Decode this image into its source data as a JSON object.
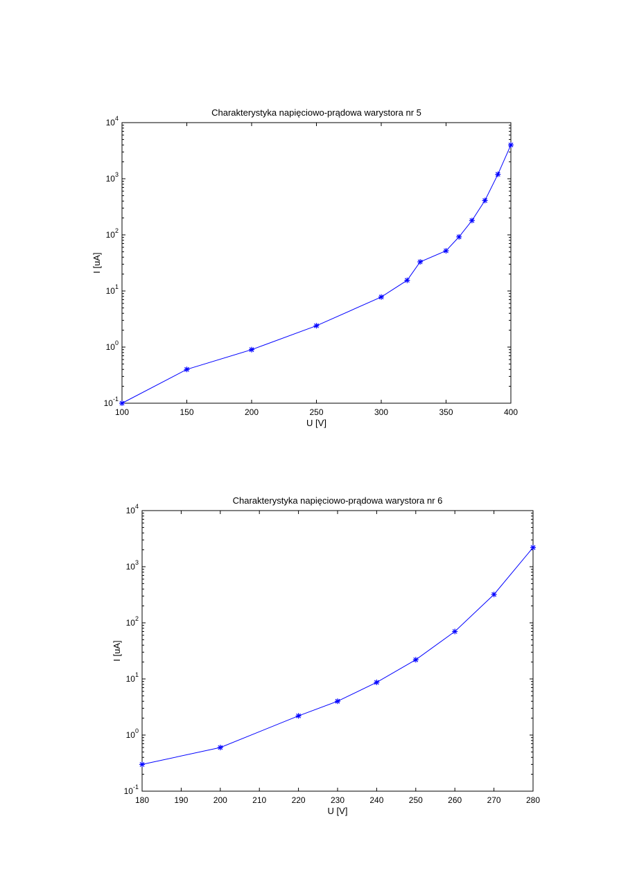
{
  "chart_data": [
    {
      "type": "line",
      "title": "Charakterystyka napięciowo-prądowa warystora nr 5",
      "xlabel": "U [V]",
      "ylabel": "I [uA]",
      "xlim": [
        100,
        400
      ],
      "ylim": [
        0.1,
        10000
      ],
      "y_scale": "log",
      "x_ticks": [
        "100",
        "150",
        "200",
        "250",
        "300",
        "350",
        "400"
      ],
      "y_ticks": [
        {
          "base": "10",
          "exp": "-1"
        },
        {
          "base": "10",
          "exp": "0"
        },
        {
          "base": "10",
          "exp": "1"
        },
        {
          "base": "10",
          "exp": "2"
        },
        {
          "base": "10",
          "exp": "3"
        },
        {
          "base": "10",
          "exp": "4"
        }
      ],
      "grid": false,
      "marker": "*",
      "color": "#0000ff",
      "series": [
        {
          "x": [
            100,
            150,
            200,
            250,
            300,
            320,
            330,
            350,
            360,
            370,
            380,
            390,
            400
          ],
          "y": [
            0.1,
            0.4,
            0.9,
            2.4,
            7.8,
            15.5,
            33,
            52,
            92,
            180,
            410,
            1200,
            4000
          ]
        }
      ]
    },
    {
      "type": "line",
      "title": "Charakterystyka napięciowo-prądowa warystora nr 6",
      "xlabel": "U [V]",
      "ylabel": "I [uA]",
      "xlim": [
        180,
        280
      ],
      "ylim": [
        0.1,
        10000
      ],
      "y_scale": "log",
      "x_ticks": [
        "180",
        "190",
        "200",
        "210",
        "220",
        "230",
        "240",
        "250",
        "260",
        "270",
        "280"
      ],
      "y_ticks": [
        {
          "base": "10",
          "exp": "-1"
        },
        {
          "base": "10",
          "exp": "0"
        },
        {
          "base": "10",
          "exp": "1"
        },
        {
          "base": "10",
          "exp": "2"
        },
        {
          "base": "10",
          "exp": "3"
        },
        {
          "base": "10",
          "exp": "4"
        }
      ],
      "grid": false,
      "marker": "*",
      "color": "#0000ff",
      "series": [
        {
          "x": [
            180,
            200,
            220,
            230,
            240,
            250,
            260,
            270,
            280
          ],
          "y": [
            0.3,
            0.6,
            2.2,
            4.0,
            8.7,
            22,
            70,
            320,
            2200
          ]
        }
      ]
    }
  ]
}
